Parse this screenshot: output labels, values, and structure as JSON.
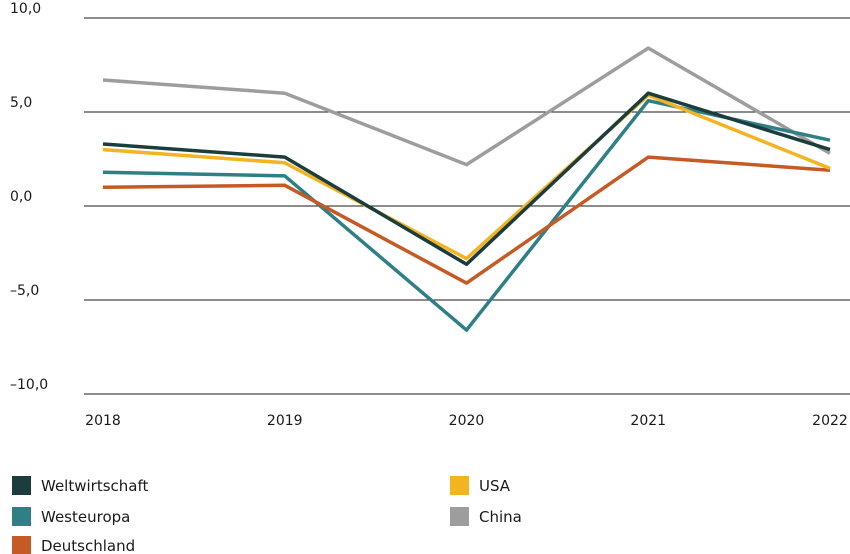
{
  "chart_data": {
    "type": "line",
    "title": "",
    "xlabel": "",
    "ylabel": "",
    "categories": [
      "2018",
      "2019",
      "2020",
      "2021",
      "2022"
    ],
    "ylim": [
      -10,
      10
    ],
    "yticks": [
      {
        "value": 10,
        "label": "10,0"
      },
      {
        "value": 5,
        "label": "5,0"
      },
      {
        "value": 0,
        "label": "0,0"
      },
      {
        "value": -5,
        "label": "–5,0"
      },
      {
        "value": -10,
        "label": "–10,0"
      }
    ],
    "grid": "horizontal",
    "legend_position": "bottom",
    "series": [
      {
        "name": "China",
        "color": "#9d9d9d",
        "values": [
          6.7,
          6.0,
          2.2,
          8.4,
          2.8
        ]
      },
      {
        "name": "Westeuropa",
        "color": "#2f7f86",
        "values": [
          1.8,
          1.6,
          -6.6,
          5.6,
          3.5
        ]
      },
      {
        "name": "Deutschland",
        "color": "#c65a25",
        "values": [
          1.0,
          1.1,
          -4.1,
          2.6,
          1.9
        ]
      },
      {
        "name": "USA",
        "color": "#f4b321",
        "values": [
          3.0,
          2.3,
          -2.8,
          5.9,
          2.0
        ]
      },
      {
        "name": "Weltwirtschaft",
        "color": "#1c3d3e",
        "values": [
          3.3,
          2.6,
          -3.1,
          6.0,
          3.0
        ]
      }
    ],
    "legend": [
      {
        "name": "Weltwirtschaft",
        "color": "#1c3d3e"
      },
      {
        "name": "Westeuropa",
        "color": "#2f7f86"
      },
      {
        "name": "Deutschland",
        "color": "#c65a25"
      },
      {
        "name": "USA",
        "color": "#f4b321"
      },
      {
        "name": "China",
        "color": "#9d9d9d"
      }
    ]
  }
}
